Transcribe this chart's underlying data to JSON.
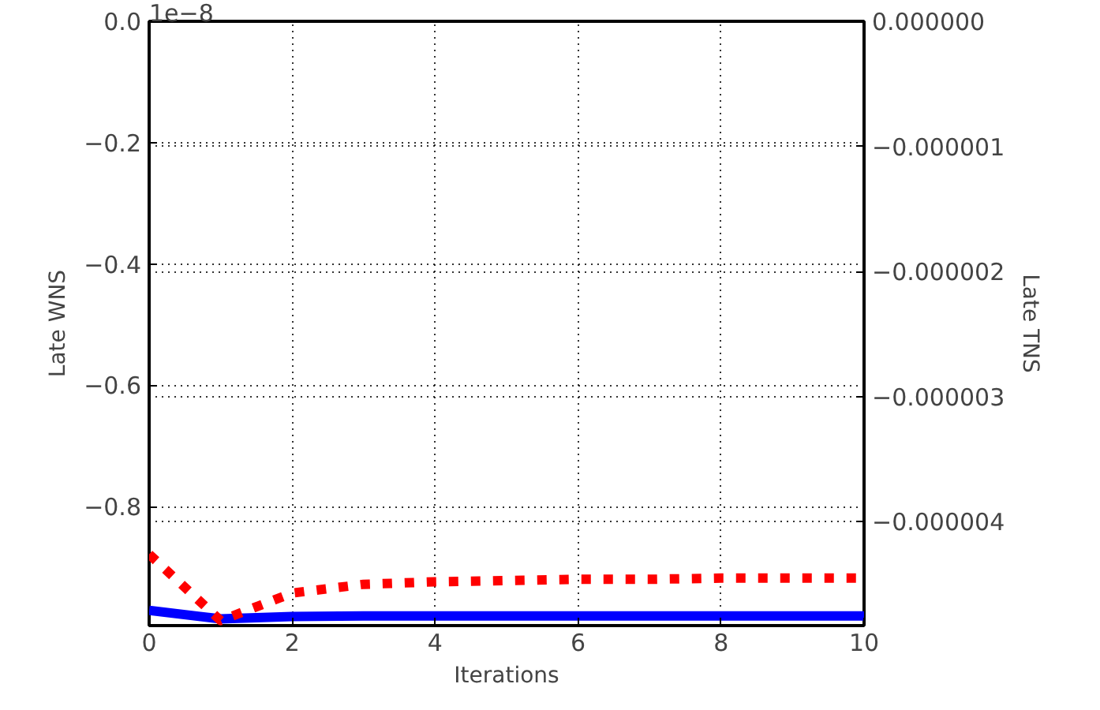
{
  "chart_data": {
    "type": "line",
    "xlabel": "Iterations",
    "ylabel": "Late WNS",
    "y2label": "Late TNS",
    "annotations": [
      "1e−8"
    ],
    "x": [
      0,
      1,
      2,
      3,
      4,
      5,
      6,
      7,
      8,
      9,
      10
    ],
    "series": [
      {
        "color": "#0000ff",
        "line_style": "solid",
        "values": [
          -0.971,
          -0.985,
          -0.981,
          -0.98,
          -0.98,
          -0.98,
          -0.98,
          -0.98,
          -0.98,
          -0.98,
          -0.98
        ]
      },
      {
        "color": "#ff0000",
        "line_style": "dashed",
        "axis": "y2",
        "values": [
          -4.26e-06,
          -4.79e-06,
          -4.57e-06,
          -4.5e-06,
          -4.48e-06,
          -4.47e-06,
          -4.46e-06,
          -4.46e-06,
          -4.45e-06,
          -4.45e-06,
          -4.45e-06
        ]
      }
    ],
    "xlim": [
      0,
      10
    ],
    "xticks": [
      0,
      2,
      4,
      6,
      8,
      10
    ],
    "ylim": [
      -0.996,
      0
    ],
    "yticks": [
      {
        "value": 0,
        "label": "0.0"
      },
      {
        "value": -0.2,
        "label": "−0.2"
      },
      {
        "value": -0.4,
        "label": "−0.4"
      },
      {
        "value": -0.6,
        "label": "−0.6"
      },
      {
        "value": -0.8,
        "label": "−0.8"
      }
    ],
    "y2lim": [
      -4.83e-06,
      0
    ],
    "y2ticks": [
      {
        "value": 0,
        "label": "0.000000"
      },
      {
        "value": -1e-06,
        "label": "−0.000001"
      },
      {
        "value": -2e-06,
        "label": "−0.000002"
      },
      {
        "value": -3e-06,
        "label": "−0.000003"
      },
      {
        "value": -4e-06,
        "label": "−0.000004"
      }
    ],
    "grid": true,
    "marker": "none"
  }
}
